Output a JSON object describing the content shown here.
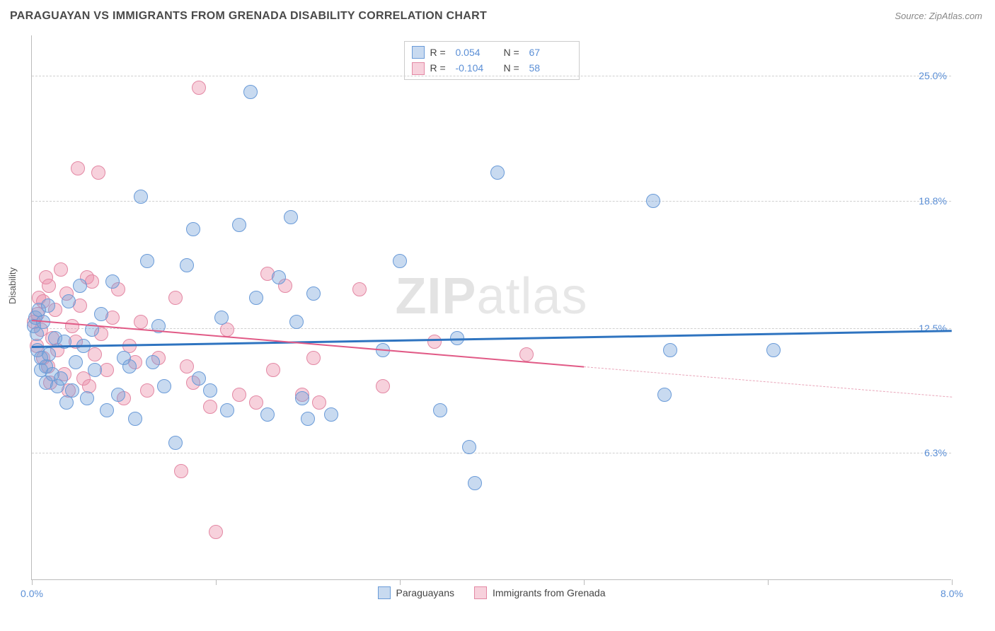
{
  "header": {
    "title": "PARAGUAYAN VS IMMIGRANTS FROM GRENADA DISABILITY CORRELATION CHART",
    "source": "Source: ZipAtlas.com"
  },
  "chart": {
    "type": "scatter",
    "ylabel": "Disability",
    "xlim": [
      0,
      8
    ],
    "ylim": [
      0,
      27
    ],
    "y_ticks": [
      {
        "value": 6.3,
        "label": "6.3%"
      },
      {
        "value": 12.5,
        "label": "12.5%"
      },
      {
        "value": 18.8,
        "label": "18.8%"
      },
      {
        "value": 25.0,
        "label": "25.0%"
      }
    ],
    "x_ticks": [
      0,
      1.6,
      3.2,
      4.8,
      6.4,
      8.0
    ],
    "x_tick_labels": {
      "start": "0.0%",
      "end": "8.0%"
    },
    "grid_color": "#d0d0d0",
    "axis_color": "#bbbbbb",
    "background_color": "#ffffff",
    "point_radius": 10,
    "series": {
      "a": {
        "label": "Paraguayans",
        "fill": "rgba(118,162,217,0.40)",
        "stroke": "#6a9bd8",
        "R": "0.054",
        "N": "67",
        "trend": {
          "x1": 0.0,
          "y1": 11.6,
          "x2": 8.0,
          "y2": 12.4,
          "color": "#2f74c0",
          "width": 2.5
        },
        "points": [
          [
            0.02,
            12.6
          ],
          [
            0.03,
            13.0
          ],
          [
            0.04,
            12.2
          ],
          [
            0.05,
            11.4
          ],
          [
            0.06,
            13.4
          ],
          [
            0.08,
            11.0
          ],
          [
            0.08,
            10.4
          ],
          [
            0.1,
            12.8
          ],
          [
            0.12,
            10.6
          ],
          [
            0.12,
            9.8
          ],
          [
            0.14,
            13.6
          ],
          [
            0.15,
            11.2
          ],
          [
            0.18,
            10.2
          ],
          [
            0.2,
            12.0
          ],
          [
            0.22,
            9.6
          ],
          [
            0.25,
            10.0
          ],
          [
            0.28,
            11.8
          ],
          [
            0.3,
            8.8
          ],
          [
            0.32,
            13.8
          ],
          [
            0.35,
            9.4
          ],
          [
            0.38,
            10.8
          ],
          [
            0.42,
            14.6
          ],
          [
            0.45,
            11.6
          ],
          [
            0.48,
            9.0
          ],
          [
            0.52,
            12.4
          ],
          [
            0.55,
            10.4
          ],
          [
            0.6,
            13.2
          ],
          [
            0.65,
            8.4
          ],
          [
            0.7,
            14.8
          ],
          [
            0.75,
            9.2
          ],
          [
            0.8,
            11.0
          ],
          [
            0.85,
            10.6
          ],
          [
            0.9,
            8.0
          ],
          [
            0.95,
            19.0
          ],
          [
            1.0,
            15.8
          ],
          [
            1.05,
            10.8
          ],
          [
            1.1,
            12.6
          ],
          [
            1.15,
            9.6
          ],
          [
            1.25,
            6.8
          ],
          [
            1.35,
            15.6
          ],
          [
            1.4,
            17.4
          ],
          [
            1.45,
            10.0
          ],
          [
            1.55,
            9.4
          ],
          [
            1.65,
            13.0
          ],
          [
            1.7,
            8.4
          ],
          [
            1.8,
            17.6
          ],
          [
            1.9,
            24.2
          ],
          [
            1.95,
            14.0
          ],
          [
            2.05,
            8.2
          ],
          [
            2.15,
            15.0
          ],
          [
            2.25,
            18.0
          ],
          [
            2.3,
            12.8
          ],
          [
            2.35,
            9.0
          ],
          [
            2.4,
            8.0
          ],
          [
            2.45,
            14.2
          ],
          [
            2.6,
            8.2
          ],
          [
            3.05,
            11.4
          ],
          [
            3.2,
            15.8
          ],
          [
            3.55,
            8.4
          ],
          [
            3.7,
            12.0
          ],
          [
            3.8,
            6.6
          ],
          [
            3.85,
            4.8
          ],
          [
            4.05,
            20.2
          ],
          [
            5.4,
            18.8
          ],
          [
            5.5,
            9.2
          ],
          [
            5.55,
            11.4
          ],
          [
            6.45,
            11.4
          ]
        ]
      },
      "b": {
        "label": "Immigrants from Grenada",
        "fill": "rgba(236,140,167,0.40)",
        "stroke": "#e388a4",
        "R": "-0.104",
        "N": "58",
        "trend_solid": {
          "x1": 0.0,
          "y1": 12.9,
          "x2": 4.8,
          "y2": 10.6,
          "color": "#e15a86",
          "width": 2
        },
        "trend_dash": {
          "x1": 4.8,
          "y1": 10.6,
          "x2": 8.0,
          "y2": 9.1,
          "color": "#e9a6ba",
          "width": 1
        },
        "points": [
          [
            0.02,
            12.8
          ],
          [
            0.04,
            11.6
          ],
          [
            0.05,
            13.2
          ],
          [
            0.06,
            14.0
          ],
          [
            0.08,
            12.4
          ],
          [
            0.1,
            11.0
          ],
          [
            0.1,
            13.8
          ],
          [
            0.12,
            15.0
          ],
          [
            0.14,
            10.6
          ],
          [
            0.15,
            14.6
          ],
          [
            0.16,
            9.8
          ],
          [
            0.18,
            12.0
          ],
          [
            0.2,
            13.4
          ],
          [
            0.22,
            11.4
          ],
          [
            0.25,
            15.4
          ],
          [
            0.28,
            10.2
          ],
          [
            0.3,
            14.2
          ],
          [
            0.32,
            9.4
          ],
          [
            0.35,
            12.6
          ],
          [
            0.38,
            11.8
          ],
          [
            0.4,
            20.4
          ],
          [
            0.42,
            13.6
          ],
          [
            0.45,
            10.0
          ],
          [
            0.48,
            15.0
          ],
          [
            0.5,
            9.6
          ],
          [
            0.52,
            14.8
          ],
          [
            0.55,
            11.2
          ],
          [
            0.58,
            20.2
          ],
          [
            0.6,
            12.2
          ],
          [
            0.65,
            10.4
          ],
          [
            0.7,
            13.0
          ],
          [
            0.75,
            14.4
          ],
          [
            0.8,
            9.0
          ],
          [
            0.85,
            11.6
          ],
          [
            0.9,
            10.8
          ],
          [
            0.95,
            12.8
          ],
          [
            1.0,
            9.4
          ],
          [
            1.1,
            11.0
          ],
          [
            1.25,
            14.0
          ],
          [
            1.3,
            5.4
          ],
          [
            1.35,
            10.6
          ],
          [
            1.4,
            9.8
          ],
          [
            1.45,
            24.4
          ],
          [
            1.55,
            8.6
          ],
          [
            1.6,
            2.4
          ],
          [
            1.7,
            12.4
          ],
          [
            1.8,
            9.2
          ],
          [
            1.95,
            8.8
          ],
          [
            2.05,
            15.2
          ],
          [
            2.1,
            10.4
          ],
          [
            2.2,
            14.6
          ],
          [
            2.35,
            9.2
          ],
          [
            2.45,
            11.0
          ],
          [
            2.5,
            8.8
          ],
          [
            2.85,
            14.4
          ],
          [
            3.05,
            9.6
          ],
          [
            3.5,
            11.8
          ],
          [
            4.3,
            11.2
          ]
        ]
      }
    },
    "legend_top": {
      "rows": [
        {
          "swatch_fill": "rgba(118,162,217,0.40)",
          "swatch_stroke": "#6a9bd8",
          "R": "0.054",
          "N": "67"
        },
        {
          "swatch_fill": "rgba(236,140,167,0.40)",
          "swatch_stroke": "#e388a4",
          "R": "-0.104",
          "N": "58"
        }
      ],
      "label_R": "R  =",
      "label_N": "N  ="
    },
    "legend_bottom": [
      {
        "swatch_fill": "rgba(118,162,217,0.40)",
        "swatch_stroke": "#6a9bd8",
        "label": "Paraguayans"
      },
      {
        "swatch_fill": "rgba(236,140,167,0.40)",
        "swatch_stroke": "#e388a4",
        "label": "Immigrants from Grenada"
      }
    ],
    "watermark": {
      "bold": "ZIP",
      "rest": "atlas"
    }
  }
}
